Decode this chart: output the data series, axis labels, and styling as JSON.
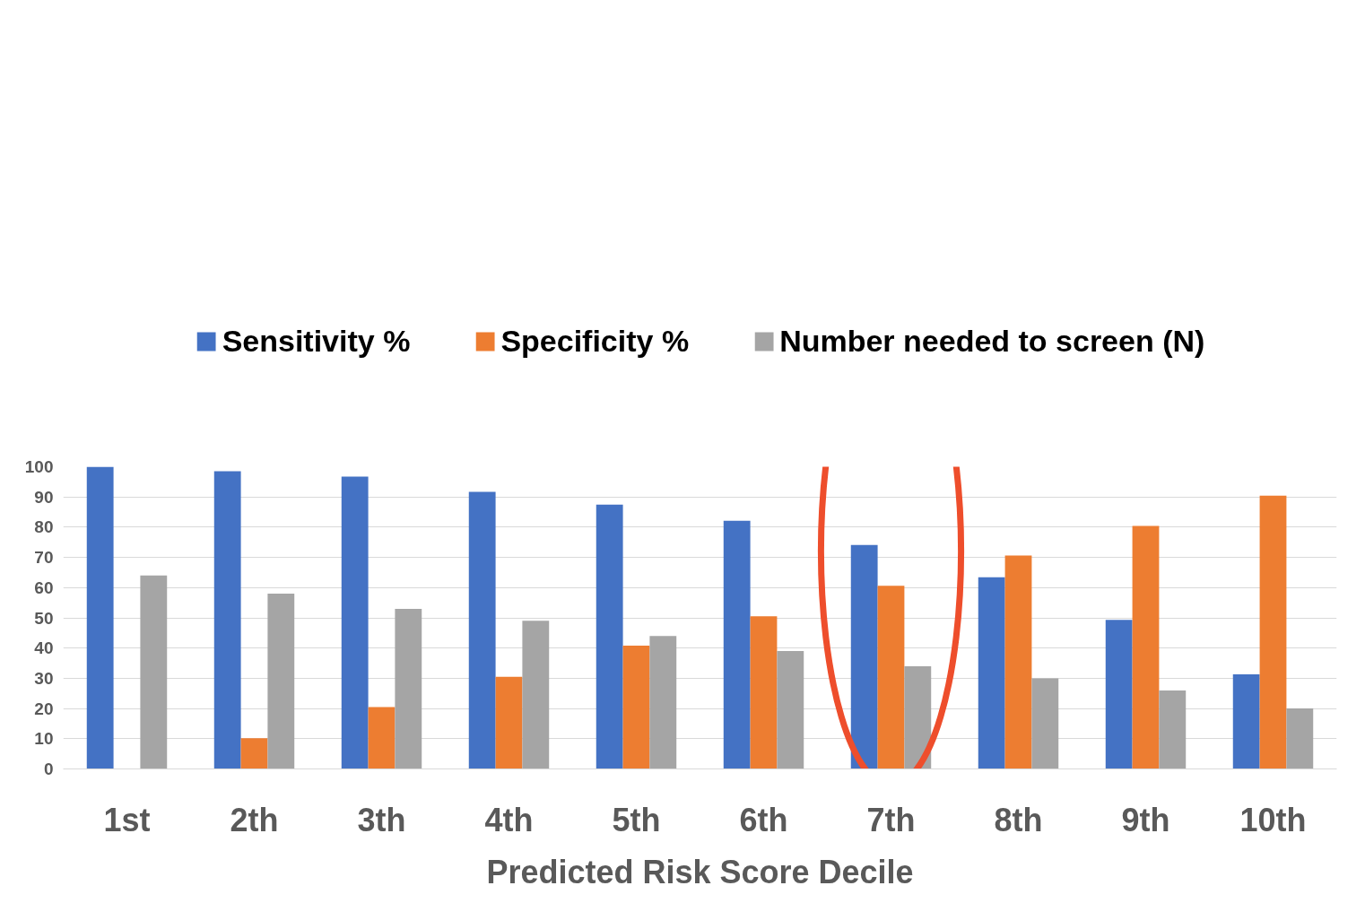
{
  "chart_data": {
    "type": "bar",
    "xlabel": "Predicted Risk Score Decile",
    "categories": [
      "1st",
      "2th",
      "3th",
      "4th",
      "5th",
      "6th",
      "7th",
      "8th",
      "9th",
      "10th"
    ],
    "series": [
      {
        "name": "Sensitivity %",
        "color": "#4472c4",
        "values": [
          100,
          98.5,
          96.7,
          91.7,
          87.5,
          82.1,
          74.1,
          63.4,
          49.3,
          31.3
        ]
      },
      {
        "name": "Specificity %",
        "color": "#ed7d31",
        "values": [
          0,
          10.2,
          20.5,
          30.5,
          40.8,
          50.5,
          60.6,
          70.6,
          80.4,
          90.4
        ]
      },
      {
        "name": "Number needed to screen (N)",
        "color": "#a5a5a5",
        "values": [
          64,
          58,
          53,
          49,
          44,
          39,
          34,
          30,
          26,
          20
        ]
      }
    ],
    "ylim": [
      0,
      100
    ],
    "yticks": [
      0,
      10,
      20,
      30,
      40,
      50,
      60,
      70,
      80,
      90,
      100
    ],
    "grid": "y",
    "legend": "top"
  }
}
